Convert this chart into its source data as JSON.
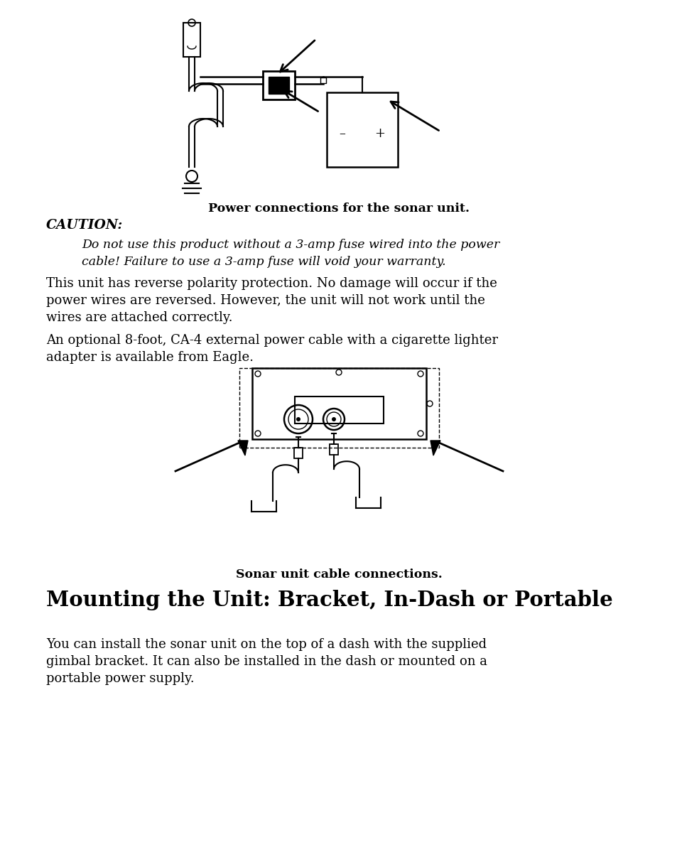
{
  "bg_color": "#ffffff",
  "text_color": "#000000",
  "fig_width": 9.54,
  "fig_height": 11.99,
  "caption1": "Power connections for the sonar unit.",
  "caution_label": "CAUTION:",
  "caution_text1": "Do not use this product without a 3-amp fuse wired into the power",
  "caution_text2": "cable! Failure to use a 3-amp fuse will void your warranty.",
  "para1_line1": "This unit has reverse polarity protection. No damage will occur if the",
  "para1_line2": "power wires are reversed. However, the unit will not work until the",
  "para1_line3": "wires are attached correctly.",
  "para2_line1": "An optional 8-foot, CA-4 external power cable with a cigarette lighter",
  "para2_line2": "adapter is available from Eagle.",
  "caption2": "Sonar unit cable connections.",
  "section_title": "Mounting the Unit: Bracket, In-Dash or Portable",
  "para3_line1": "You can install the sonar unit on the top of a dash with the supplied",
  "para3_line2": "gimbal bracket. It can also be installed in the dash or mounted on a",
  "para3_line3": "portable power supply."
}
